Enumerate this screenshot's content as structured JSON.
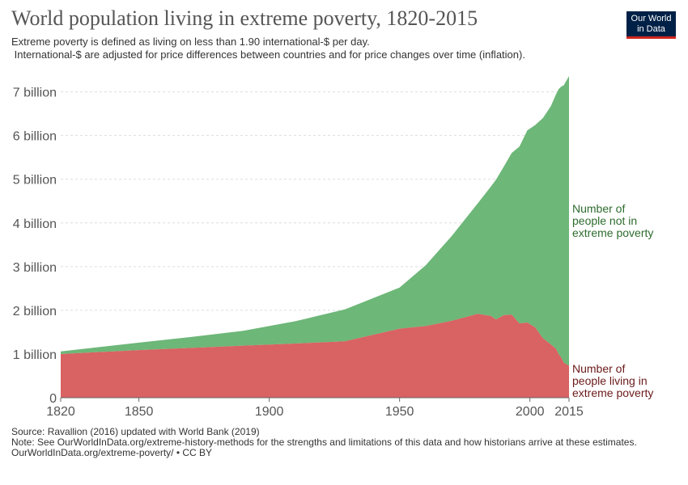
{
  "header": {
    "title": "World population living in extreme poverty, 1820-2015",
    "subtitle_line1": "Extreme poverty is defined as living on less than 1.90 international-$ per day.",
    "subtitle_line2": " International-$ are adjusted for price differences between countries and for price changes over time (inflation).",
    "logo_line1": "Our World",
    "logo_line2": "in Data"
  },
  "footer": {
    "source": "Source: Ravallion (2016) updated with World Bank (2019)",
    "note": "Note: See OurWorldInData.org/extreme-history-methods for the strengths and limitations of this data and how historians arrive at these estimates.",
    "url": "OurWorldInData.org/extreme-poverty/ • CC BY"
  },
  "colors": {
    "not_poor_fill": "#6db778",
    "poor_fill": "#d96262",
    "not_poor_label": "#2e6b2e",
    "poor_label": "#6b1a1a",
    "grid": "#dddddd",
    "axis": "#666666"
  },
  "chart_data": {
    "type": "area",
    "stacked": true,
    "xlim": [
      1820,
      2015
    ],
    "ylim": [
      0,
      7400000000
    ],
    "x_ticks": [
      1820,
      1850,
      1900,
      1950,
      2000,
      2015
    ],
    "x_tick_labels": [
      "1820",
      "1850",
      "1900",
      "1950",
      "2000",
      "2015"
    ],
    "y_ticks": [
      0,
      1000000000,
      2000000000,
      3000000000,
      4000000000,
      5000000000,
      6000000000,
      7000000000
    ],
    "y_tick_labels": [
      "0",
      "1 billion",
      "2 billion",
      "3 billion",
      "4 billion",
      "5 billion",
      "6 billion",
      "7 billion"
    ],
    "grid": true,
    "x": [
      1820,
      1850,
      1870,
      1890,
      1910,
      1929,
      1950,
      1960,
      1970,
      1980,
      1985,
      1987,
      1990,
      1993,
      1996,
      1999,
      2002,
      2005,
      2008,
      2010,
      2011,
      2012,
      2013,
      2015
    ],
    "series": [
      {
        "name": "Number of people living in extreme poverty",
        "label_lines": [
          "Number of",
          "people living in",
          "extreme poverty"
        ],
        "values": [
          1000000000,
          1090000000,
          1140000000,
          1190000000,
          1240000000,
          1290000000,
          1580000000,
          1640000000,
          1760000000,
          1920000000,
          1870000000,
          1790000000,
          1890000000,
          1900000000,
          1700000000,
          1720000000,
          1610000000,
          1360000000,
          1220000000,
          1120000000,
          1000000000,
          920000000,
          800000000,
          730000000
        ]
      },
      {
        "name": "Number of people not in extreme poverty",
        "label_lines": [
          "Number of",
          "people not in",
          "extreme poverty"
        ],
        "values": [
          60000000,
          170000000,
          250000000,
          340000000,
          510000000,
          730000000,
          940000000,
          1390000000,
          1940000000,
          2530000000,
          2960000000,
          3200000000,
          3400000000,
          3700000000,
          4050000000,
          4400000000,
          4630000000,
          5040000000,
          5450000000,
          5820000000,
          6060000000,
          6200000000,
          6350000000,
          6630000000
        ]
      }
    ]
  }
}
